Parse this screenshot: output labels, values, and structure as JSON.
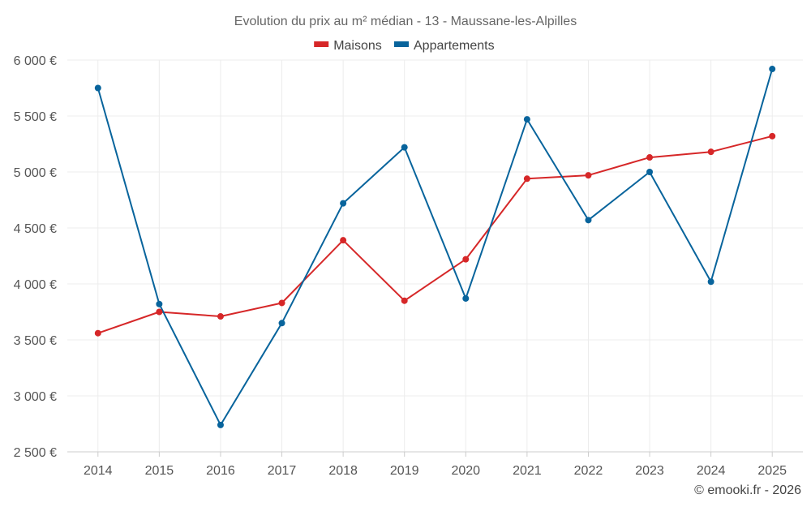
{
  "chart_data": {
    "type": "line",
    "title": "Evolution du prix au m² médian - 13 - Maussane-les-Alpilles",
    "xlabel": "",
    "ylabel": "",
    "categories": [
      "2014",
      "2015",
      "2016",
      "2017",
      "2018",
      "2019",
      "2020",
      "2021",
      "2022",
      "2023",
      "2024",
      "2025"
    ],
    "series": [
      {
        "name": "Maisons",
        "color": "#d62728",
        "values": [
          3560,
          3750,
          3710,
          3830,
          4390,
          3850,
          4220,
          4940,
          4970,
          5130,
          5180,
          5320
        ]
      },
      {
        "name": "Appartements",
        "color": "#08649c",
        "values": [
          5750,
          3820,
          2740,
          3650,
          4720,
          5220,
          3870,
          5470,
          4570,
          5000,
          4020,
          5920
        ]
      }
    ],
    "ylim": [
      2500,
      6000
    ],
    "yticks": [
      2500,
      3000,
      3500,
      4000,
      4500,
      5000,
      5500,
      6000
    ],
    "ytick_labels": [
      "2 500 €",
      "3 000 €",
      "3 500 €",
      "4 000 €",
      "4 500 €",
      "5 000 €",
      "5 500 €",
      "6 000 €"
    ],
    "grid": true,
    "legend_position": "top-center"
  },
  "credit": "© emooki.fr - 2026"
}
